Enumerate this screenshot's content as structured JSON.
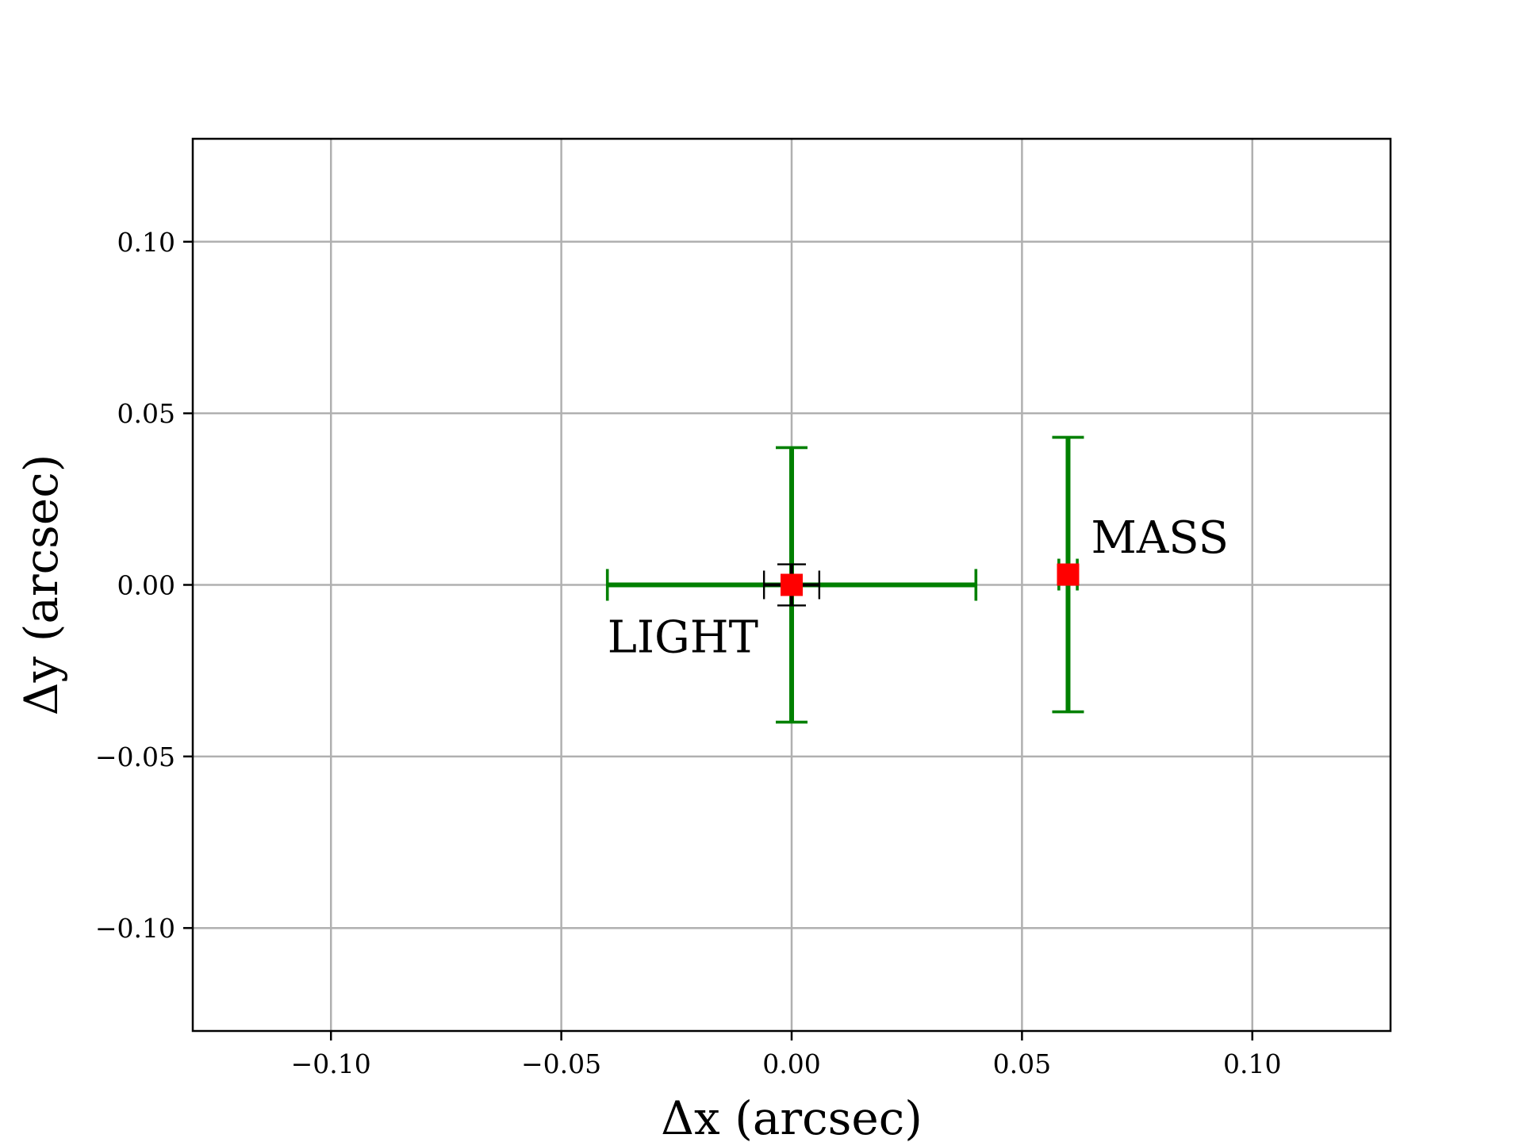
{
  "chart_data": {
    "type": "scatter",
    "title": "",
    "xlabel": "Δx (arcsec)",
    "ylabel": "Δy (arcsec)",
    "xlim": [
      -0.13,
      0.13
    ],
    "ylim": [
      -0.13,
      0.13
    ],
    "grid": true,
    "legend": "none",
    "x_ticks": [
      {
        "value": -0.1,
        "label": "−0.10"
      },
      {
        "value": -0.05,
        "label": "−0.05"
      },
      {
        "value": 0.0,
        "label": "0.00"
      },
      {
        "value": 0.05,
        "label": "0.05"
      },
      {
        "value": 0.1,
        "label": "0.10"
      }
    ],
    "y_ticks": [
      {
        "value": 0.1,
        "label": "0.10"
      },
      {
        "value": 0.05,
        "label": "0.05"
      },
      {
        "value": 0.0,
        "label": "0.00"
      },
      {
        "value": -0.05,
        "label": "−0.05"
      },
      {
        "value": -0.1,
        "label": "−0.10"
      }
    ],
    "points": [
      {
        "label": "LIGHT",
        "x": 0.0,
        "y": 0.0,
        "marker_color": "#ff0000",
        "errorbars": [
          {
            "color": "#008000",
            "xerr": 0.04,
            "yerr": 0.04,
            "thick": true
          },
          {
            "color": "#000000",
            "xerr": 0.006,
            "yerr": 0.006,
            "thick": false
          }
        ]
      },
      {
        "label": "MASS",
        "x": 0.06,
        "y": 0.003,
        "marker_color": "#ff0000",
        "errorbars": [
          {
            "color": "#008000",
            "xerr": 0.002,
            "yerr": 0.04,
            "thick": true
          }
        ]
      }
    ],
    "annotations": [
      {
        "text": "LIGHT",
        "x": -0.04,
        "y": -0.015
      },
      {
        "text": "MASS",
        "x": 0.065,
        "y": 0.014
      }
    ],
    "colors": {
      "grid": "#b0b0b0",
      "axes": "#000000",
      "marker": "#ff0000",
      "error_main": "#008000",
      "error_secondary": "#000000"
    }
  }
}
